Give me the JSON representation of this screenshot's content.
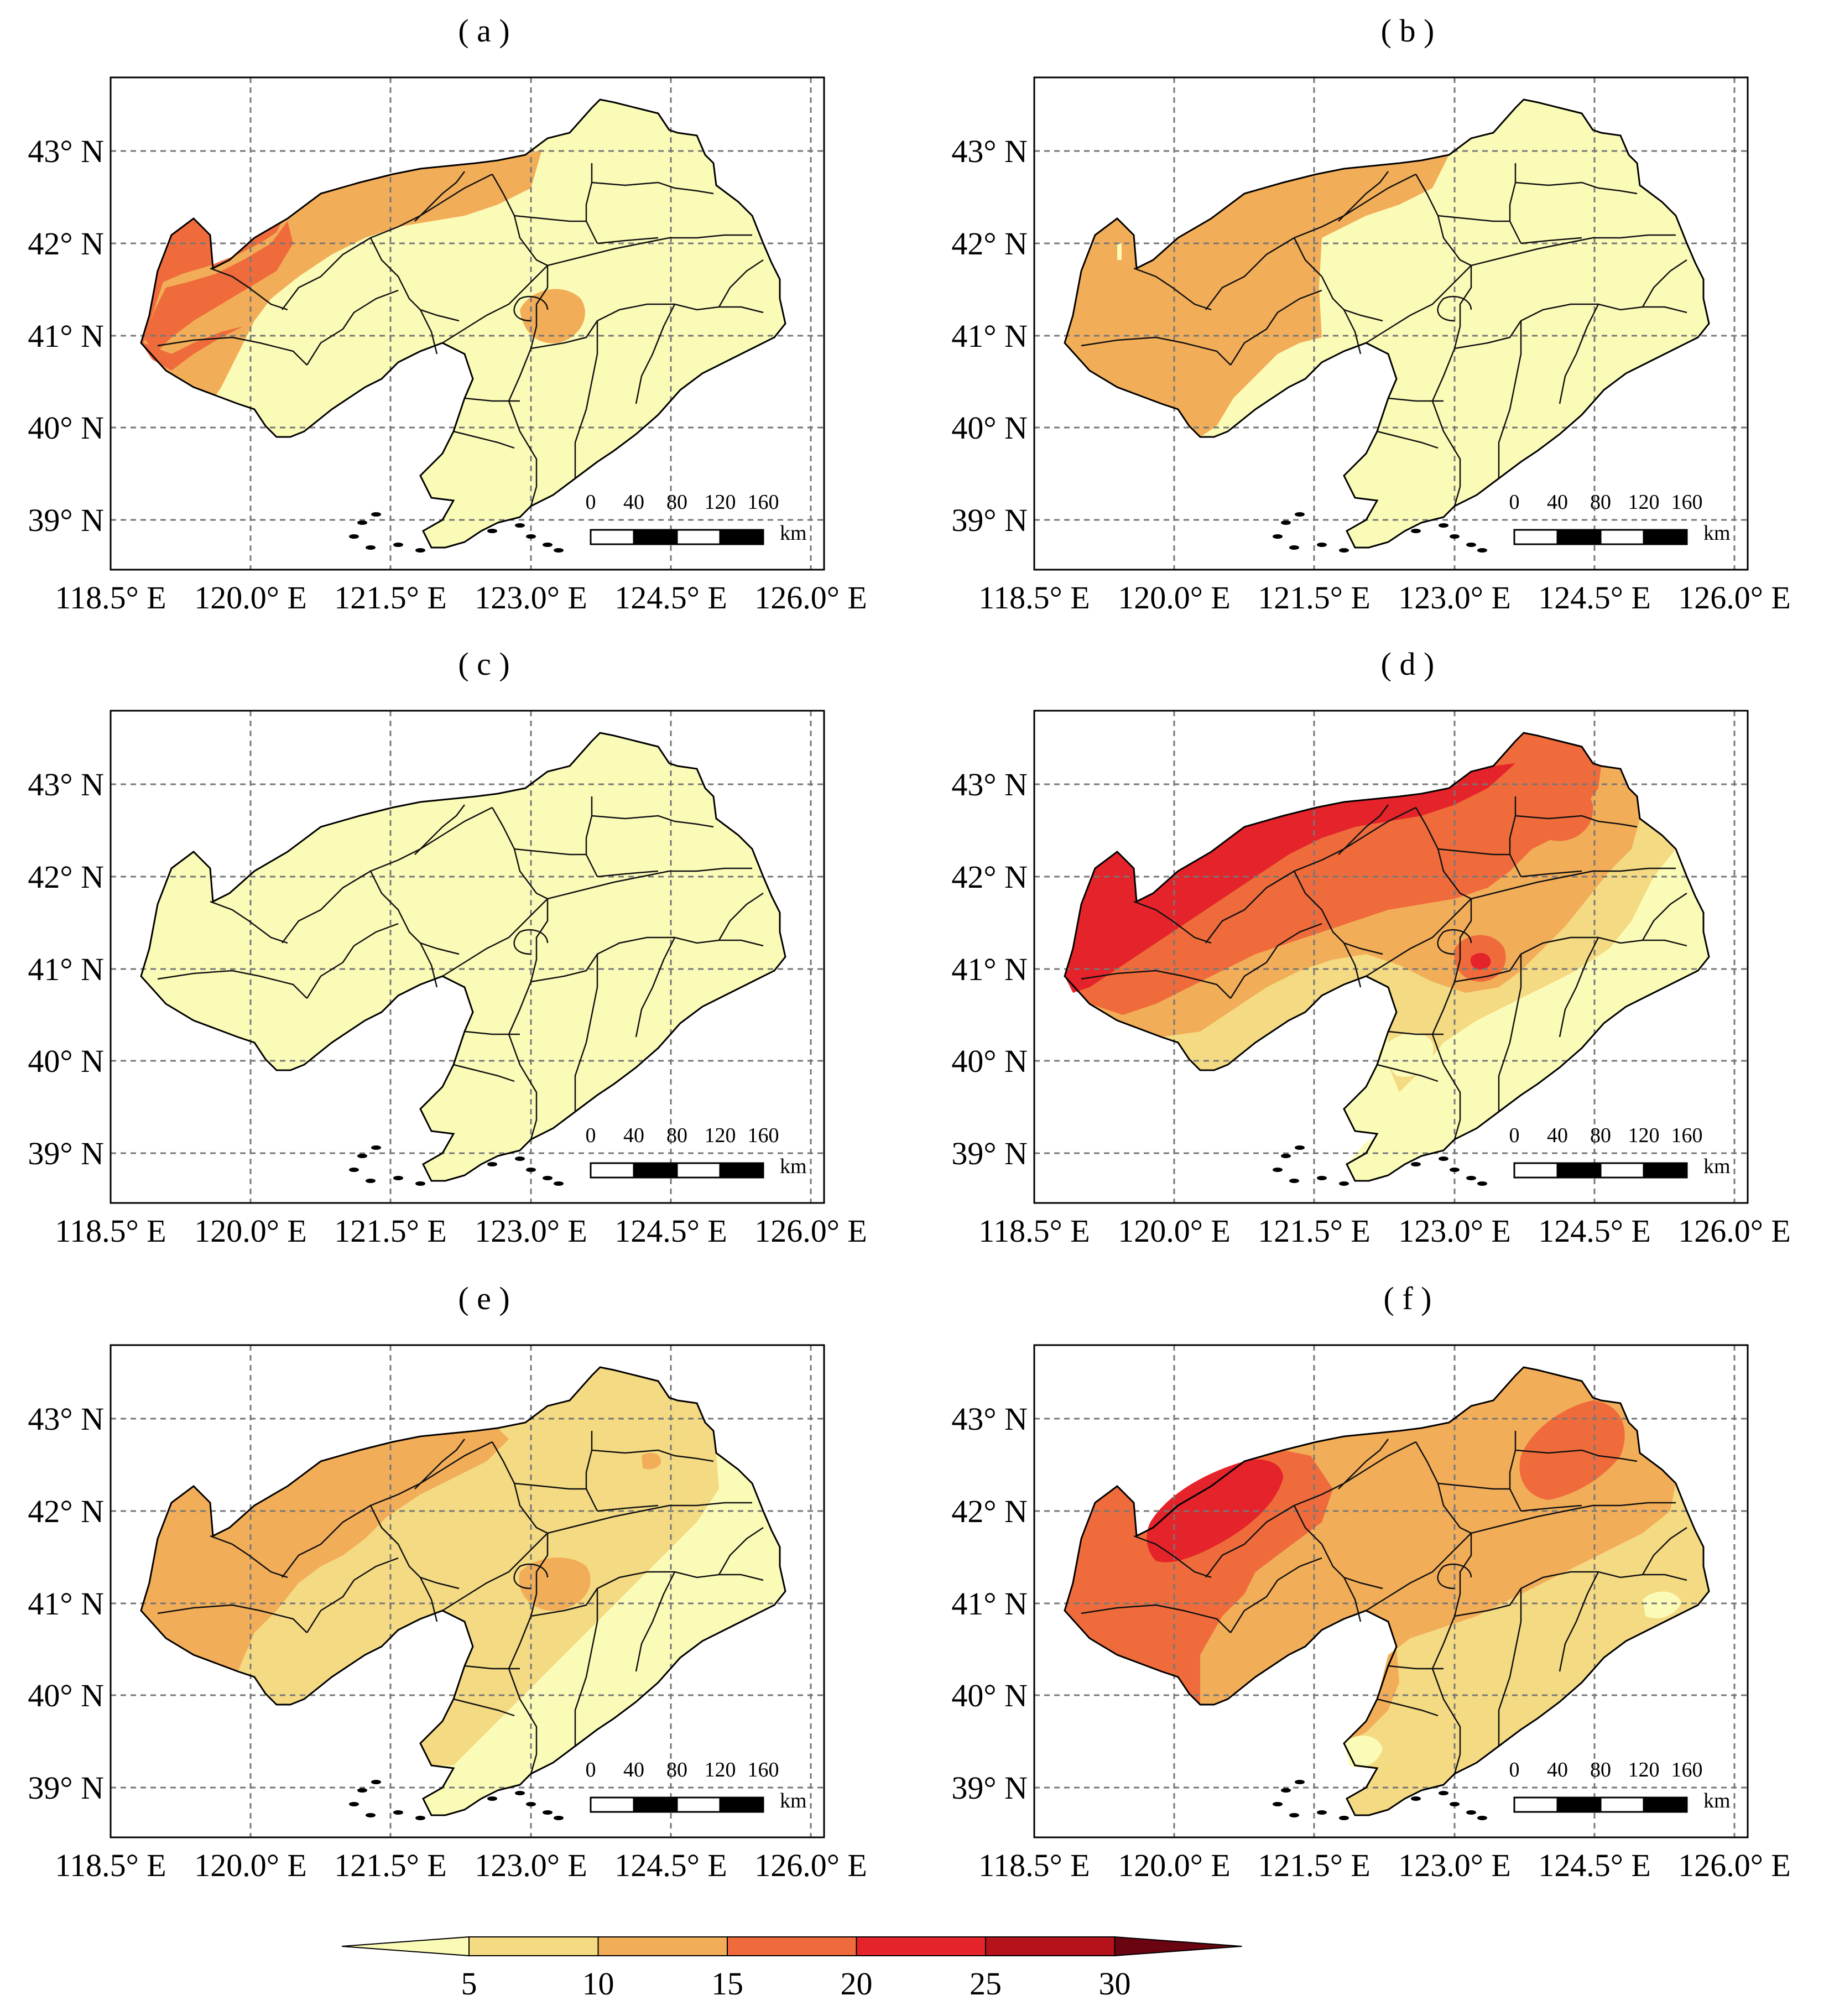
{
  "panels": [
    {
      "label": "( a )",
      "scheme": "a"
    },
    {
      "label": "( b )",
      "scheme": "b"
    },
    {
      "label": "( c )",
      "scheme": "c"
    },
    {
      "label": "( d )",
      "scheme": "d"
    },
    {
      "label": "( e )",
      "scheme": "e"
    },
    {
      "label": "( f )",
      "scheme": "f"
    }
  ],
  "axes": {
    "lat_labels": [
      "43° N",
      "42° N",
      "41° N",
      "40° N",
      "39° N"
    ],
    "lon_labels": [
      "118.5° E",
      "120.0° E",
      "121.5° E",
      "123.0° E",
      "124.5° E",
      "126.0° E"
    ],
    "lat_range": [
      38.5,
      43.8
    ],
    "lon_range": [
      118.5,
      126.2
    ],
    "grid": true
  },
  "scale_bar": {
    "ticks": [
      "0",
      "40",
      "80",
      "120",
      "160"
    ],
    "unit": "km"
  },
  "colorbar": {
    "ticks": [
      "5",
      "10",
      "15",
      "20",
      "25",
      "30"
    ],
    "colors": [
      "#FBFBB8",
      "#F4DA82",
      "#F2AD58",
      "#EF6B3B",
      "#E5232A",
      "#B5121B",
      "#6A0410"
    ],
    "extend": "both"
  }
}
